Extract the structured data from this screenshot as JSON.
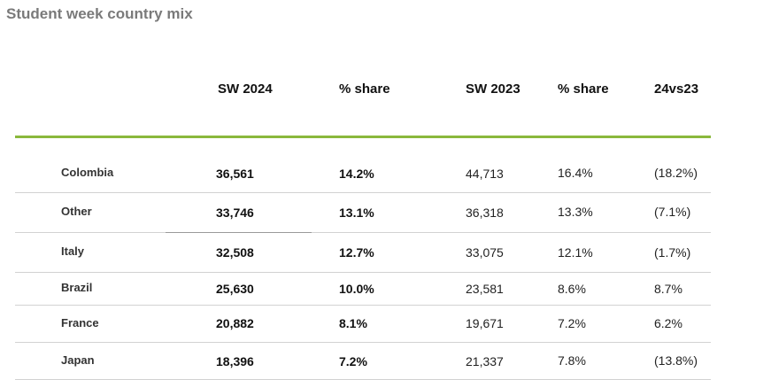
{
  "title": "Student week country mix",
  "headers": {
    "sw2024": "SW 2024",
    "share2024": "% share",
    "sw2023": "SW 2023",
    "share2023": "% share",
    "diff": "24vs23"
  },
  "rows": [
    {
      "country": "Colombia",
      "sw2024": "36,561",
      "share2024": "14.2%",
      "sw2023": "44,713",
      "share2023": "16.4%",
      "diff": "(18.2%)"
    },
    {
      "country": "Other",
      "sw2024": "33,746",
      "share2024": "13.1%",
      "sw2023": "36,318",
      "share2023": "13.3%",
      "diff": "(7.1%)"
    },
    {
      "country": "Italy",
      "sw2024": "32,508",
      "share2024": "12.7%",
      "sw2023": "33,075",
      "share2023": "12.1%",
      "diff": "(1.7%)"
    },
    {
      "country": "Brazil",
      "sw2024": "25,630",
      "share2024": "10.0%",
      "sw2023": "23,581",
      "share2023": "8.6%",
      "diff": "8.7%"
    },
    {
      "country": "France",
      "sw2024": "20,882",
      "share2024": "8.1%",
      "sw2023": "19,671",
      "share2023": "7.2%",
      "diff": "6.2%"
    },
    {
      "country": "Japan",
      "sw2024": "18,396",
      "share2024": "7.2%",
      "sw2023": "21,337",
      "share2023": "7.8%",
      "diff": "(13.8%)"
    }
  ],
  "colors": {
    "accent_rule": "#8ab83c",
    "title": "#7a7a7a",
    "divider": "#d2d2d2"
  }
}
